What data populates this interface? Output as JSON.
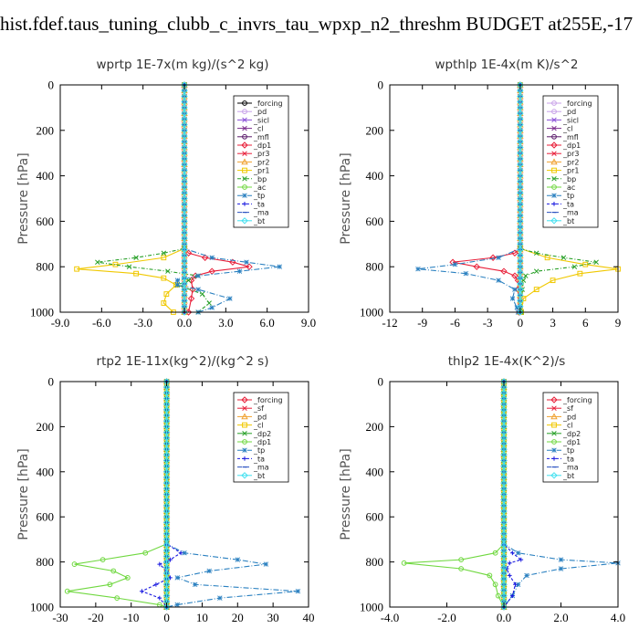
{
  "page_title": "hist.fdef.taus_tuning_clubb_c_invrs_tau_wpxp_n2_threshm  BUDGET at255E,-17",
  "chart_data": [
    {
      "type": "line",
      "title": "wprtp  1E-7x(m kg)/(s^2 kg)",
      "ylabel": "Pressure [hPa]",
      "ylim": [
        1000,
        0
      ],
      "xlim": [
        -9,
        9
      ],
      "xticks": [
        "-9.0",
        "-6.0",
        "-3.0",
        "0.0",
        "3.0",
        "6.0",
        "9.0"
      ],
      "xtick_values": [
        -9,
        -6,
        -3,
        0,
        3,
        6,
        9
      ],
      "yticks": [
        "0",
        "200",
        "400",
        "600",
        "800",
        "1000"
      ],
      "ytick_values": [
        0,
        200,
        400,
        600,
        800,
        1000
      ],
      "legend_position": "top-right",
      "series": [
        {
          "name": "_forcing",
          "color": "#000000",
          "marker": "circle",
          "y": [
            0,
            740,
            1000
          ],
          "x": [
            0,
            0,
            0
          ]
        },
        {
          "name": "_pd",
          "color": "#c8a2e8",
          "marker": "circle",
          "y": [
            0,
            1000
          ],
          "x": [
            0,
            0
          ]
        },
        {
          "name": "_sicl",
          "color": "#8a4fd8",
          "marker": "cross",
          "y": [
            0,
            1000
          ],
          "x": [
            0,
            0
          ]
        },
        {
          "name": "_cl",
          "color": "#7b2a8c",
          "marker": "cross",
          "y": [
            0,
            1000
          ],
          "x": [
            0,
            0
          ]
        },
        {
          "name": "_mfl",
          "color": "#5a1a6a",
          "marker": "circle",
          "y": [
            0,
            1000
          ],
          "x": [
            0,
            0
          ]
        },
        {
          "name": "_dp1",
          "color": "#e8203a",
          "marker": "diamond",
          "y": [
            0,
            720,
            740,
            760,
            780,
            800,
            820,
            840,
            860,
            900,
            940,
            1000
          ],
          "x": [
            0,
            0,
            0.3,
            1.5,
            3.5,
            4.7,
            2.0,
            0.8,
            0.5,
            0.6,
            0.5,
            0.3
          ]
        },
        {
          "name": "_pr3",
          "color": "#e8203a",
          "marker": "x",
          "y": [
            0,
            1000
          ],
          "x": [
            0,
            0
          ]
        },
        {
          "name": "_pr2",
          "color": "#f0a030",
          "marker": "triangle",
          "y": [
            0,
            1000
          ],
          "x": [
            0,
            0
          ]
        },
        {
          "name": "_pr1",
          "color": "#f0c800",
          "marker": "square",
          "y": [
            0,
            720,
            760,
            790,
            810,
            830,
            850,
            880,
            920,
            960,
            1000
          ],
          "x": [
            0,
            0,
            -1.5,
            -5.0,
            -7.8,
            -3.5,
            -1.5,
            -0.6,
            -1.3,
            -1.5,
            -0.8
          ]
        },
        {
          "name": "_bp",
          "color": "#28a028",
          "marker": "x",
          "y": [
            0,
            720,
            740,
            760,
            780,
            800,
            820,
            840,
            860,
            880,
            920,
            960,
            1000
          ],
          "x": [
            0,
            0,
            -1.5,
            -3.5,
            -6.3,
            -4.0,
            -1.2,
            1.0,
            0.3,
            -0.5,
            1.3,
            1.8,
            1.0
          ]
        },
        {
          "name": "_ac",
          "color": "#70d840",
          "marker": "circle",
          "y": [
            0,
            1000
          ],
          "x": [
            0,
            0
          ]
        },
        {
          "name": "_tp",
          "color": "#2a80c0",
          "marker": "star",
          "y": [
            0,
            720,
            760,
            780,
            800,
            820,
            840,
            860,
            880,
            900,
            940,
            980,
            1000
          ],
          "x": [
            0,
            0,
            2.0,
            4.5,
            6.9,
            4.0,
            1.0,
            -0.5,
            -0.5,
            1.0,
            3.3,
            2.0,
            1.0
          ]
        },
        {
          "name": "_ta",
          "color": "#1a1ae0",
          "marker": "plus",
          "y": [
            0,
            1000
          ],
          "x": [
            0,
            0
          ]
        },
        {
          "name": "_ma",
          "color": "#2a50c0",
          "marker": "dash",
          "y": [
            0,
            1000
          ],
          "x": [
            0,
            0
          ]
        },
        {
          "name": "_bt",
          "color": "#40e0f0",
          "marker": "diamond",
          "y": [
            0,
            1000
          ],
          "x": [
            0,
            0
          ]
        }
      ]
    },
    {
      "type": "line",
      "title": "wpthlp  1E-4x(m K)/s^2",
      "ylabel": "Pressure [hPa]",
      "ylim": [
        1000,
        0
      ],
      "xlim": [
        -12,
        9
      ],
      "xticks": [
        "-12",
        "-9",
        "-6",
        "-3",
        "0",
        "3",
        "6",
        "9"
      ],
      "xtick_values": [
        -12,
        -9,
        -6,
        -3,
        0,
        3,
        6,
        9
      ],
      "yticks": [
        "0",
        "200",
        "400",
        "600",
        "800",
        "1000"
      ],
      "ytick_values": [
        0,
        200,
        400,
        600,
        800,
        1000
      ],
      "legend_position": "top-right",
      "series": [
        {
          "name": "_forcing",
          "color": "#c8a2e8",
          "marker": "circle",
          "y": [
            0,
            1000
          ],
          "x": [
            0,
            0
          ]
        },
        {
          "name": "_pd",
          "color": "#c8a2e8",
          "marker": "circle",
          "y": [
            0,
            1000
          ],
          "x": [
            0,
            0
          ]
        },
        {
          "name": "_sicl",
          "color": "#8a4fd8",
          "marker": "cross",
          "y": [
            0,
            1000
          ],
          "x": [
            0,
            0
          ]
        },
        {
          "name": "_cl",
          "color": "#7b2a8c",
          "marker": "cross",
          "y": [
            0,
            1000
          ],
          "x": [
            0,
            0
          ]
        },
        {
          "name": "_mfl",
          "color": "#5a1a6a",
          "marker": "circle",
          "y": [
            0,
            1000
          ],
          "x": [
            0,
            0
          ]
        },
        {
          "name": "_dp1",
          "color": "#e8203a",
          "marker": "diamond",
          "y": [
            0,
            720,
            740,
            760,
            780,
            800,
            820,
            840,
            860,
            900,
            1000
          ],
          "x": [
            0,
            0,
            -0.5,
            -2.5,
            -6.2,
            -4.0,
            -1.5,
            -0.5,
            -0.2,
            -0.2,
            -0.1
          ]
        },
        {
          "name": "_pr3",
          "color": "#e8203a",
          "marker": "x",
          "y": [
            0,
            1000
          ],
          "x": [
            0,
            0
          ]
        },
        {
          "name": "_pr2",
          "color": "#f0a030",
          "marker": "triangle",
          "y": [
            0,
            1000
          ],
          "x": [
            0,
            0
          ]
        },
        {
          "name": "_pr1",
          "color": "#f0c800",
          "marker": "square",
          "y": [
            0,
            720,
            760,
            790,
            810,
            830,
            860,
            900,
            940,
            1000
          ],
          "x": [
            0,
            0,
            2.5,
            6.0,
            9.0,
            5.5,
            3.0,
            1.5,
            0.3,
            0.1
          ]
        },
        {
          "name": "_bp",
          "color": "#28a028",
          "marker": "x",
          "y": [
            0,
            720,
            740,
            760,
            780,
            800,
            820,
            840,
            860,
            900,
            1000
          ],
          "x": [
            0,
            0,
            1.5,
            4.0,
            7.0,
            5.0,
            1.5,
            0.5,
            0.3,
            0.2,
            0.1
          ]
        },
        {
          "name": "_ac",
          "color": "#70d840",
          "marker": "circle",
          "y": [
            0,
            1000
          ],
          "x": [
            0,
            0
          ]
        },
        {
          "name": "_tp",
          "color": "#2a80c0",
          "marker": "star",
          "y": [
            0,
            720,
            760,
            790,
            810,
            830,
            860,
            900,
            940,
            980,
            1000
          ],
          "x": [
            0,
            0,
            -2.0,
            -6.0,
            -9.4,
            -5.0,
            -2.0,
            -0.5,
            -0.7,
            -0.3,
            -0.2
          ]
        },
        {
          "name": "_ta",
          "color": "#1a1ae0",
          "marker": "plus",
          "y": [
            0,
            1000
          ],
          "x": [
            0,
            0
          ]
        },
        {
          "name": "_ma",
          "color": "#2a50c0",
          "marker": "dash",
          "y": [
            0,
            1000
          ],
          "x": [
            0,
            0
          ]
        },
        {
          "name": "_bt",
          "color": "#40e0f0",
          "marker": "diamond",
          "y": [
            0,
            1000
          ],
          "x": [
            0,
            0
          ]
        }
      ]
    },
    {
      "type": "line",
      "title": "rtp2  1E-11x(kg^2)/(kg^2 s)",
      "ylabel": "Pressure [hPa]",
      "ylim": [
        1000,
        0
      ],
      "xlim": [
        -30,
        40
      ],
      "xticks": [
        "-30",
        "-20",
        "-10",
        "0",
        "10",
        "20",
        "30",
        "40"
      ],
      "xtick_values": [
        -30,
        -20,
        -10,
        0,
        10,
        20,
        30,
        40
      ],
      "yticks": [
        "0",
        "200",
        "400",
        "600",
        "800",
        "1000"
      ],
      "ytick_values": [
        0,
        200,
        400,
        600,
        800,
        1000
      ],
      "legend_position": "top-right",
      "series": [
        {
          "name": "_forcing",
          "color": "#e8203a",
          "marker": "diamond",
          "y": [
            0,
            1000
          ],
          "x": [
            0,
            0
          ]
        },
        {
          "name": "_sf",
          "color": "#e8203a",
          "marker": "x",
          "y": [
            0,
            1000
          ],
          "x": [
            0,
            0
          ]
        },
        {
          "name": "_pd",
          "color": "#f0a030",
          "marker": "triangle",
          "y": [
            0,
            1000
          ],
          "x": [
            0,
            0
          ]
        },
        {
          "name": "_cl",
          "color": "#f0c800",
          "marker": "square",
          "y": [
            0,
            1000
          ],
          "x": [
            0,
            0
          ]
        },
        {
          "name": "_dp2",
          "color": "#28a028",
          "marker": "x",
          "y": [
            0,
            1000
          ],
          "x": [
            0,
            0
          ]
        },
        {
          "name": "_dp1",
          "color": "#70d840",
          "marker": "circle",
          "y": [
            0,
            720,
            760,
            790,
            810,
            840,
            870,
            900,
            930,
            960,
            990,
            1000
          ],
          "x": [
            0,
            0,
            -6,
            -18,
            -26,
            -15,
            -11,
            -16,
            -28,
            -14,
            -2,
            0
          ]
        },
        {
          "name": "_tp",
          "color": "#2a80c0",
          "marker": "star",
          "y": [
            0,
            720,
            760,
            790,
            810,
            840,
            870,
            900,
            930,
            960,
            990,
            1000
          ],
          "x": [
            0,
            0,
            5,
            20,
            28,
            12,
            3,
            8,
            37,
            15,
            3,
            0
          ]
        },
        {
          "name": "_ta",
          "color": "#1a1ae0",
          "marker": "plus",
          "y": [
            0,
            720,
            760,
            790,
            810,
            840,
            870,
            900,
            930,
            960,
            1000
          ],
          "x": [
            0,
            0,
            4,
            1,
            -2,
            0,
            1,
            -3,
            -7,
            -2,
            0
          ]
        },
        {
          "name": "_ma",
          "color": "#2a50c0",
          "marker": "dash",
          "y": [
            0,
            1000
          ],
          "x": [
            0,
            0
          ]
        },
        {
          "name": "_bt",
          "color": "#40e0f0",
          "marker": "diamond",
          "y": [
            0,
            1000
          ],
          "x": [
            0,
            0
          ]
        }
      ]
    },
    {
      "type": "line",
      "title": "thlp2  1E-4x(K^2)/s",
      "ylabel": "Pressure [hPa]",
      "ylim": [
        1000,
        0
      ],
      "xlim": [
        -4,
        4
      ],
      "xticks": [
        "-4.0",
        "-2.0",
        "0.0",
        "2.0",
        "4.0"
      ],
      "xtick_values": [
        -4,
        -2,
        0,
        2,
        4
      ],
      "yticks": [
        "0",
        "200",
        "400",
        "600",
        "800",
        "1000"
      ],
      "ytick_values": [
        0,
        200,
        400,
        600,
        800,
        1000
      ],
      "legend_position": "top-right",
      "series": [
        {
          "name": "_forcing",
          "color": "#e8203a",
          "marker": "diamond",
          "y": [
            0,
            1000
          ],
          "x": [
            0,
            0
          ]
        },
        {
          "name": "_sf",
          "color": "#e8203a",
          "marker": "x",
          "y": [
            0,
            1000
          ],
          "x": [
            0,
            0
          ]
        },
        {
          "name": "_pd",
          "color": "#f0a030",
          "marker": "triangle",
          "y": [
            0,
            1000
          ],
          "x": [
            0,
            0
          ]
        },
        {
          "name": "_cl",
          "color": "#f0c800",
          "marker": "square",
          "y": [
            0,
            1000
          ],
          "x": [
            0,
            0
          ]
        },
        {
          "name": "_dp2",
          "color": "#28a028",
          "marker": "x",
          "y": [
            0,
            1000
          ],
          "x": [
            0,
            0
          ]
        },
        {
          "name": "_dp1",
          "color": "#70d840",
          "marker": "circle",
          "y": [
            0,
            720,
            760,
            790,
            805,
            830,
            860,
            900,
            950,
            1000
          ],
          "x": [
            0,
            0,
            -0.3,
            -1.5,
            -3.5,
            -1.5,
            -0.5,
            -0.3,
            -0.2,
            0
          ]
        },
        {
          "name": "_tp",
          "color": "#2a80c0",
          "marker": "star",
          "y": [
            0,
            720,
            760,
            790,
            805,
            830,
            860,
            900,
            950,
            1000
          ],
          "x": [
            0,
            0,
            0.5,
            2.0,
            4.0,
            2.0,
            0.8,
            0.5,
            0.3,
            0
          ]
        },
        {
          "name": "_ta",
          "color": "#1a1ae0",
          "marker": "plus",
          "y": [
            0,
            720,
            760,
            790,
            805,
            830,
            860,
            900,
            950,
            1000
          ],
          "x": [
            0,
            0,
            0.3,
            0.6,
            0.2,
            0.1,
            0.2,
            0.4,
            0.3,
            0
          ]
        },
        {
          "name": "_ma",
          "color": "#2a50c0",
          "marker": "dash",
          "y": [
            0,
            1000
          ],
          "x": [
            0,
            0
          ]
        },
        {
          "name": "_bt",
          "color": "#40e0f0",
          "marker": "diamond",
          "y": [
            0,
            1000
          ],
          "x": [
            0,
            0
          ]
        }
      ]
    }
  ]
}
